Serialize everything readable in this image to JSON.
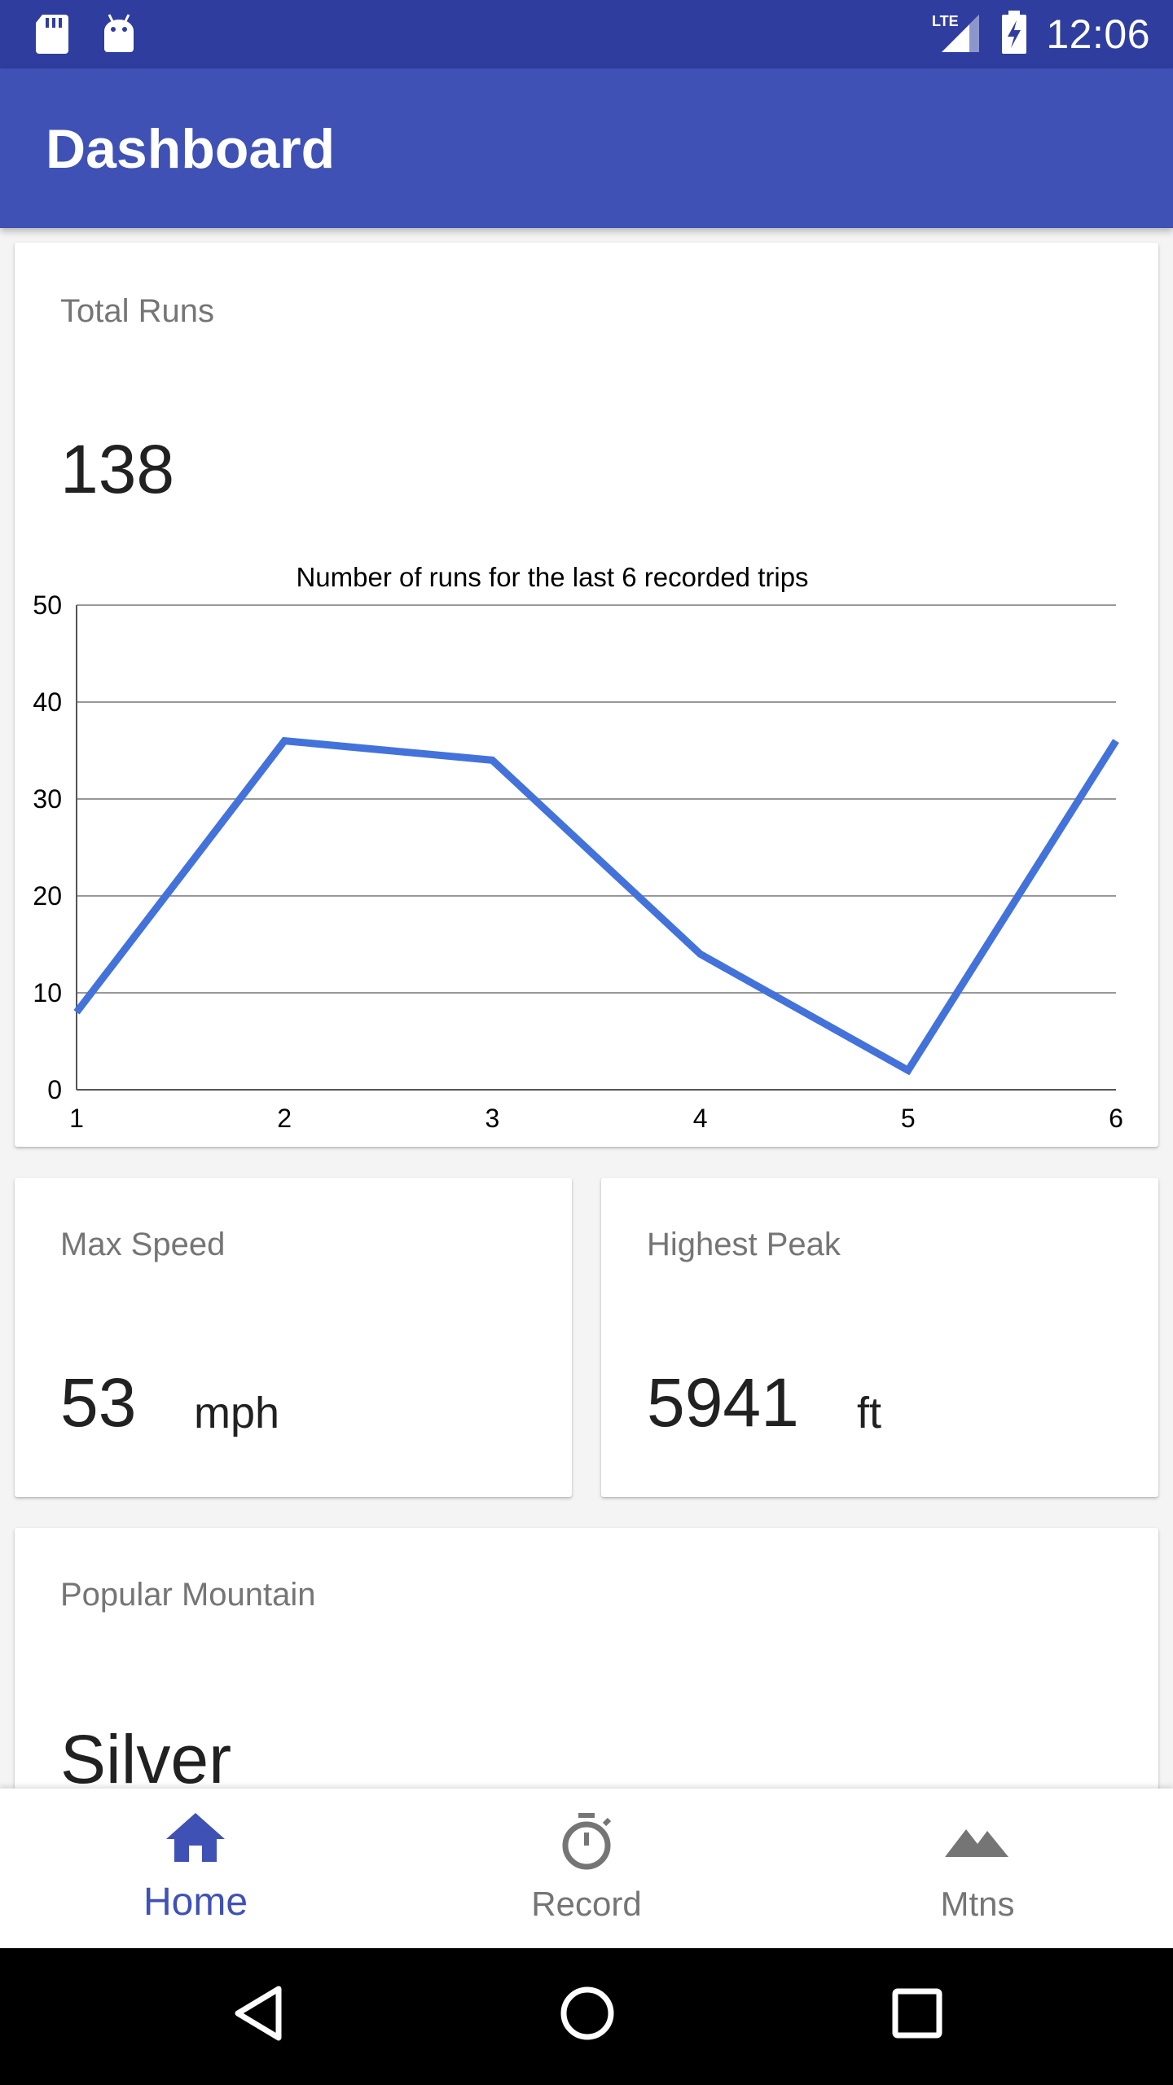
{
  "status_bar": {
    "time": "12:06",
    "network": "LTE"
  },
  "app_bar": {
    "title": "Dashboard"
  },
  "total_runs_card": {
    "label": "Total Runs",
    "value": "138"
  },
  "chart_data": {
    "type": "line",
    "title": "Number of runs for the last 6 recorded trips",
    "x": [
      1,
      2,
      3,
      4,
      5,
      6
    ],
    "series": [
      {
        "values": [
          8,
          36,
          34,
          14,
          2,
          36
        ]
      }
    ],
    "ylim": [
      0,
      50
    ],
    "yticks": [
      0,
      10,
      20,
      30,
      40,
      50
    ],
    "xticks": [
      1,
      2,
      3,
      4,
      5,
      6
    ],
    "grid": true,
    "colors": {
      "line": "#4472db",
      "grid": "#777777"
    }
  },
  "max_speed_card": {
    "label": "Max Speed",
    "value": "53",
    "unit": "mph"
  },
  "highest_peak_card": {
    "label": "Highest Peak",
    "value": "5941",
    "unit": "ft"
  },
  "popular_mountain_card": {
    "label": "Popular Mountain",
    "value": "Silver"
  },
  "bottom_nav": {
    "items": [
      {
        "label": "Home",
        "icon": "home-icon",
        "active": true
      },
      {
        "label": "Record",
        "icon": "stopwatch-icon",
        "active": false
      },
      {
        "label": "Mtns",
        "icon": "mountains-icon",
        "active": false
      }
    ]
  },
  "colors": {
    "primary": "#3f51b5",
    "primary_dark": "#2f3d9e",
    "inactive": "#757575"
  }
}
